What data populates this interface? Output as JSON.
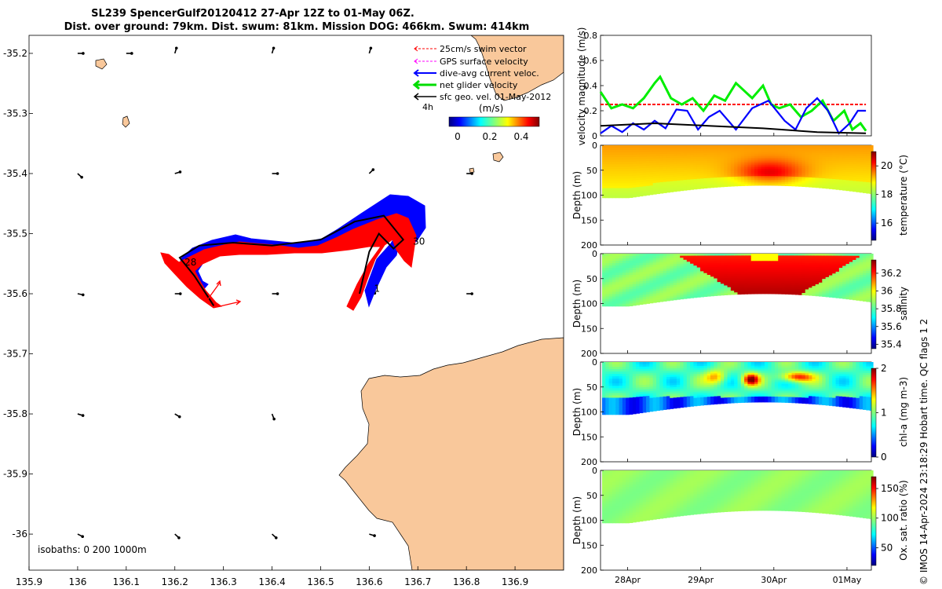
{
  "title_line1": "SL239 SpencerGulf20120412 27-Apr 12Z to 01-May 06Z.",
  "title_line2": "Dist. over ground: 79km. Dist. swum: 81km. Mission DOG: 466km. Swum: 414km",
  "footer": "© IMOS 14-Apr-2024 23:18:29 Hobart time. QC flags 1  2",
  "colors": {
    "land": "#f9c89b",
    "swim": "#ff0000",
    "gps": "#ff00ff",
    "dac": "#0000ff",
    "net": "#00dd00",
    "geo": "#000000"
  },
  "map": {
    "chart_data": {
      "type": "map",
      "xlim": [
        135.9,
        137.0
      ],
      "ylim": [
        -36.06,
        -35.17
      ],
      "xticks": [
        135.9,
        136.0,
        136.1,
        136.2,
        136.3,
        136.4,
        136.5,
        136.6,
        136.7,
        136.8,
        136.9
      ],
      "xtick_labels": [
        "135.9",
        "136",
        "136.1",
        "136.2",
        "136.3",
        "136.4",
        "136.5",
        "136.6",
        "136.7",
        "136.8",
        "136.9"
      ],
      "yticks": [
        -35.2,
        -35.3,
        -35.4,
        -35.5,
        -35.6,
        -35.7,
        -35.8,
        -35.9,
        -36.0
      ],
      "ytick_labels": [
        "-35.2",
        "-35.3",
        "-35.4",
        "-35.5",
        "-35.6",
        "-35.7",
        "-35.8",
        "-35.9",
        "-36"
      ],
      "track": [
        [
          136.28,
          -35.62
        ],
        [
          136.24,
          -35.57
        ],
        [
          136.21,
          -35.54
        ],
        [
          136.25,
          -35.52
        ],
        [
          136.32,
          -35.515
        ],
        [
          136.4,
          -35.52
        ],
        [
          136.5,
          -35.51
        ],
        [
          136.57,
          -35.48
        ],
        [
          136.63,
          -35.47
        ],
        [
          136.67,
          -35.51
        ],
        [
          136.65,
          -35.525
        ],
        [
          136.62,
          -35.5
        ],
        [
          136.6,
          -35.53
        ],
        [
          136.58,
          -35.6
        ]
      ],
      "day_labels": [
        {
          "text": "1",
          "lon": 136.61,
          "lat": -35.597
        },
        {
          "text": "28",
          "lon": 136.22,
          "lat": -35.553
        },
        {
          "text": "30",
          "lon": 136.69,
          "lat": -35.518
        }
      ],
      "legend": [
        "25cm/s swim vector",
        "GPS surface velocity",
        "dive-avg current veloc.",
        "net glider velocity",
        "sfc geo. vel. 01-May-2012"
      ],
      "vector_scale_label": "4h",
      "colorbar": {
        "unit": "(m/s)",
        "ticks": [
          "0",
          "0.2",
          "0.4"
        ]
      },
      "isobaths_label": "isobaths: 0   200  1000m",
      "geo_vectors": [
        {
          "lon": 136.0,
          "lat": -35.2,
          "u": 1,
          "v": 0
        },
        {
          "lon": 136.1,
          "lat": -35.2,
          "u": 1,
          "v": 0
        },
        {
          "lon": 136.2,
          "lat": -35.2,
          "u": 0.3,
          "v": 1
        },
        {
          "lon": 136.4,
          "lat": -35.2,
          "u": 0.3,
          "v": 1
        },
        {
          "lon": 136.6,
          "lat": -35.2,
          "u": 0.3,
          "v": 1
        },
        {
          "lon": 136.0,
          "lat": -35.4,
          "u": 1,
          "v": -0.9
        },
        {
          "lon": 136.2,
          "lat": -35.4,
          "u": 1,
          "v": 0.3
        },
        {
          "lon": 136.4,
          "lat": -35.4,
          "u": 1,
          "v": 0
        },
        {
          "lon": 136.6,
          "lat": -35.4,
          "u": 1,
          "v": 1
        },
        {
          "lon": 136.8,
          "lat": -35.4,
          "u": 1,
          "v": 0
        },
        {
          "lon": 136.0,
          "lat": -35.6,
          "u": 1,
          "v": -0.2
        },
        {
          "lon": 136.2,
          "lat": -35.6,
          "u": 1,
          "v": 0
        },
        {
          "lon": 136.4,
          "lat": -35.6,
          "u": 1,
          "v": 0
        },
        {
          "lon": 136.6,
          "lat": -35.6,
          "u": 1,
          "v": 0.1
        },
        {
          "lon": 136.8,
          "lat": -35.6,
          "u": 1,
          "v": 0
        },
        {
          "lon": 136.0,
          "lat": -35.8,
          "u": 1,
          "v": -0.3
        },
        {
          "lon": 136.2,
          "lat": -35.8,
          "u": 1,
          "v": -0.6
        },
        {
          "lon": 136.4,
          "lat": -35.8,
          "u": 0.4,
          "v": -1
        },
        {
          "lon": 136.0,
          "lat": -36.0,
          "u": 1,
          "v": -0.5
        },
        {
          "lon": 136.2,
          "lat": -36.0,
          "u": 1,
          "v": -0.9
        },
        {
          "lon": 136.4,
          "lat": -36.0,
          "u": 1,
          "v": -0.9
        },
        {
          "lon": 136.6,
          "lat": -36.0,
          "u": 1,
          "v": -0.3
        }
      ]
    }
  },
  "time_panels": {
    "xticks": [
      {
        "label": "28Apr",
        "pos": 0.1
      },
      {
        "label": "29Apr",
        "pos": 0.37
      },
      {
        "label": "30Apr",
        "pos": 0.64
      },
      {
        "label": "01May",
        "pos": 0.91
      }
    ],
    "velocity": {
      "chart_data": {
        "type": "line",
        "ylabel": "velocity magnitude (m/s)",
        "ylim": [
          0,
          0.8
        ],
        "yticks": [
          "0",
          "0.2",
          "0.4",
          "0.6",
          "0.8"
        ],
        "series": [
          {
            "key": "swim",
            "x": [
              0,
              0.98
            ],
            "values": [
              0.25,
              0.25
            ],
            "color": "#ff0000",
            "dashed": true
          },
          {
            "key": "net",
            "x": [
              0,
              0.04,
              0.08,
              0.12,
              0.16,
              0.2,
              0.22,
              0.26,
              0.3,
              0.34,
              0.38,
              0.42,
              0.46,
              0.5,
              0.52,
              0.56,
              0.6,
              0.63,
              0.66,
              0.7,
              0.74,
              0.78,
              0.82,
              0.86,
              0.9,
              0.93,
              0.96,
              0.98
            ],
            "values": [
              0.35,
              0.22,
              0.25,
              0.22,
              0.3,
              0.42,
              0.47,
              0.3,
              0.25,
              0.3,
              0.2,
              0.32,
              0.28,
              0.42,
              0.38,
              0.3,
              0.4,
              0.25,
              0.22,
              0.25,
              0.15,
              0.2,
              0.28,
              0.12,
              0.2,
              0.05,
              0.1,
              0.04
            ],
            "color": "#00ee00"
          },
          {
            "key": "dac",
            "x": [
              0,
              0.04,
              0.08,
              0.12,
              0.16,
              0.2,
              0.24,
              0.28,
              0.32,
              0.36,
              0.4,
              0.44,
              0.5,
              0.56,
              0.62,
              0.68,
              0.72,
              0.76,
              0.8,
              0.84,
              0.88,
              0.92,
              0.95,
              0.98
            ],
            "values": [
              0.02,
              0.08,
              0.03,
              0.1,
              0.05,
              0.12,
              0.06,
              0.21,
              0.2,
              0.05,
              0.15,
              0.2,
              0.05,
              0.22,
              0.28,
              0.12,
              0.05,
              0.22,
              0.3,
              0.2,
              0.02,
              0.1,
              0.2,
              0.2
            ],
            "color": "#0000ff"
          },
          {
            "key": "geo",
            "x": [
              0,
              0.2,
              0.4,
              0.6,
              0.8,
              0.98
            ],
            "values": [
              0.08,
              0.1,
              0.08,
              0.06,
              0.03,
              0.02
            ],
            "color": "#000000"
          }
        ]
      }
    },
    "sections": [
      {
        "name": "temperature",
        "ylabel": "Depth (m)",
        "clabel": "temperature (°C)",
        "yticks": [
          "0",
          "50",
          "100",
          "150",
          "200"
        ],
        "cticks": [
          "16",
          "18",
          "20"
        ],
        "cmin": 14.8,
        "cmax": 21
      },
      {
        "name": "salinity",
        "ylabel": "Depth (m)",
        "clabel": "salinity",
        "yticks": [
          "0",
          "50",
          "100",
          "150",
          "200"
        ],
        "cticks": [
          "35.4",
          "35.6",
          "35.8",
          "36",
          "36.2"
        ],
        "cmin": 35.35,
        "cmax": 36.35
      },
      {
        "name": "chl",
        "ylabel": "Depth (m)",
        "clabel": "chl-a (mg m-3)",
        "yticks": [
          "0",
          "50",
          "100",
          "150",
          "200"
        ],
        "cticks": [
          "0",
          "1",
          "2"
        ],
        "cmin": 0,
        "cmax": 2
      },
      {
        "name": "oxy",
        "ylabel": "Depth (m)",
        "clabel": "Ox. sat. ratio (%)",
        "yticks": [
          "0",
          "50",
          "100",
          "150",
          "200"
        ],
        "cticks": [
          "50",
          "100",
          "150"
        ],
        "cmin": 20,
        "cmax": 170
      }
    ]
  }
}
